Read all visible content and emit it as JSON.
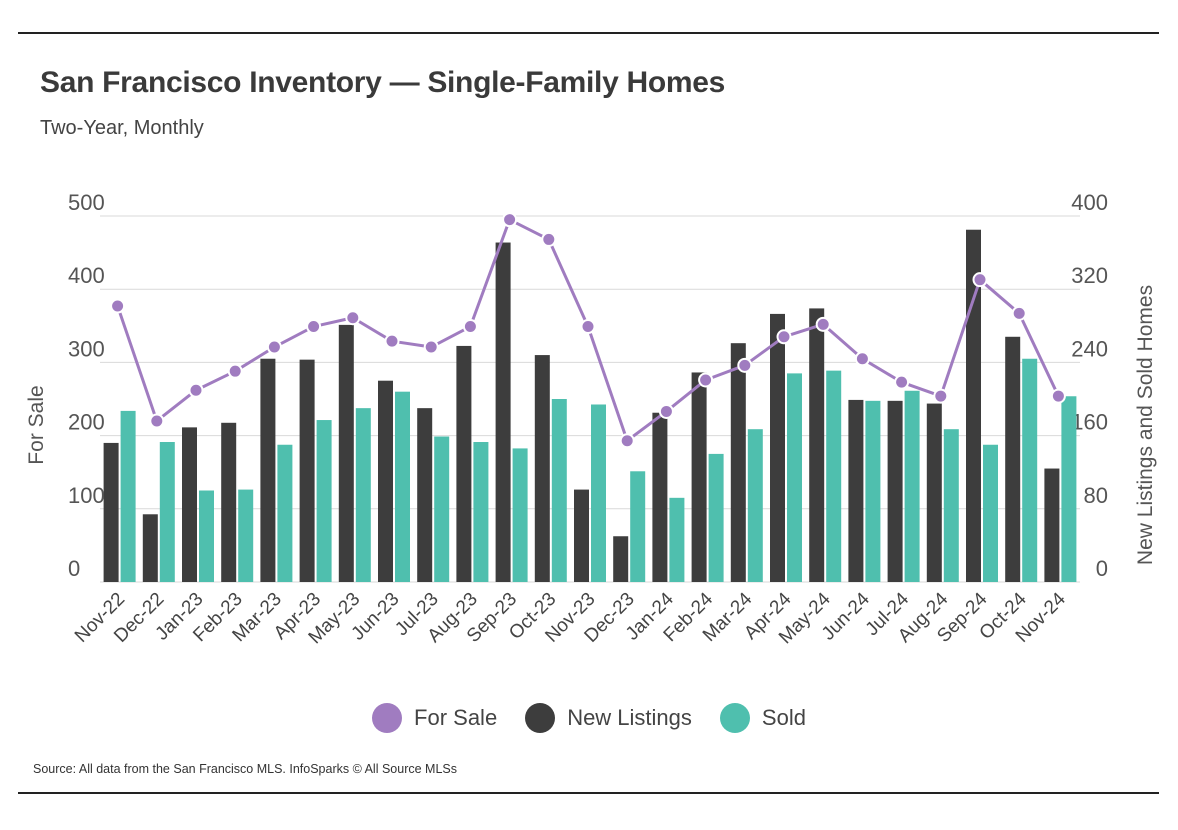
{
  "header": {
    "title": "San Francisco Inventory — Single-Family Homes",
    "subtitle": "Two-Year, Monthly"
  },
  "footer": {
    "source": "Source:  All data from the San Francisco MLS. InfoSparks © All Source MLSs"
  },
  "colors": {
    "for_sale": "#a07cc0",
    "new_listings": "#3d3d3d",
    "sold": "#4fbfae",
    "grid": "#d9d9d9",
    "axis_text": "#555555",
    "rule": "#222222"
  },
  "chart_data": {
    "type": "bar",
    "categories": [
      "Nov-22",
      "Dec-22",
      "Jan-23",
      "Feb-23",
      "Mar-23",
      "Apr-23",
      "May-23",
      "Jun-23",
      "Jul-23",
      "Aug-23",
      "Sep-23",
      "Oct-23",
      "Nov-23",
      "Dec-23",
      "Jan-24",
      "Feb-24",
      "Mar-24",
      "Apr-24",
      "May-24",
      "Jun-24",
      "Jul-24",
      "Aug-24",
      "Sep-24",
      "Oct-24",
      "Nov-24"
    ],
    "series": [
      {
        "name": "For Sale",
        "type": "line",
        "axis": "left",
        "values": [
          377,
          220,
          262,
          288,
          321,
          349,
          361,
          329,
          321,
          349,
          495,
          468,
          349,
          193,
          233,
          276,
          296,
          335,
          352,
          305,
          273,
          254,
          413,
          367,
          254
        ]
      },
      {
        "name": "New Listings",
        "type": "bar",
        "axis": "right",
        "values": [
          152,
          74,
          169,
          174,
          244,
          243,
          281,
          220,
          190,
          258,
          371,
          248,
          101,
          50,
          185,
          229,
          261,
          293,
          299,
          199,
          198,
          195,
          385,
          268,
          124
        ]
      },
      {
        "name": "Sold",
        "type": "bar",
        "axis": "right",
        "values": [
          187,
          153,
          100,
          101,
          150,
          177,
          190,
          208,
          159,
          153,
          146,
          200,
          194,
          121,
          92,
          140,
          167,
          228,
          231,
          198,
          209,
          167,
          150,
          244,
          203
        ]
      }
    ],
    "left_axis": {
      "label": "For Sale",
      "ticks": [
        "0",
        "100",
        "200",
        "300",
        "400",
        "500"
      ],
      "range": [
        0,
        500
      ]
    },
    "right_axis": {
      "label": "New Listings and Sold Homes",
      "ticks": [
        "0",
        "80",
        "160",
        "240",
        "320",
        "400"
      ],
      "range": [
        0,
        400
      ]
    },
    "xlabel": "",
    "grid": true,
    "legend": {
      "position": "bottom-center",
      "items": [
        "For Sale",
        "New Listings",
        "Sold"
      ]
    }
  }
}
